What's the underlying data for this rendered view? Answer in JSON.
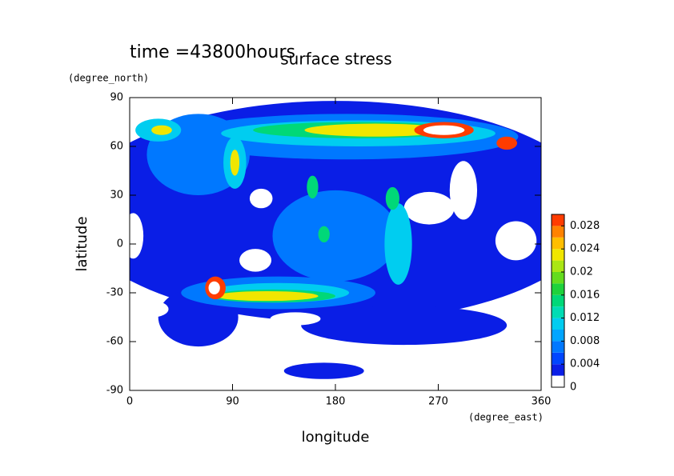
{
  "chart_data": {
    "type": "contour",
    "title": "surface stress",
    "subtitle": "time =43800hours",
    "x_label": "longitude",
    "y_label": "latitude",
    "x_unit": "(degree_east)",
    "y_unit": "(degree_north)",
    "xlim": [
      0,
      360
    ],
    "xticks": [
      0,
      90,
      180,
      270,
      360
    ],
    "ylim": [
      -90,
      90
    ],
    "yticks": [
      -90,
      -60,
      -30,
      0,
      30,
      60,
      90
    ],
    "levels": [
      0,
      0.002,
      0.004,
      0.006,
      0.008,
      0.01,
      0.012,
      0.014,
      0.016,
      0.018,
      0.02,
      0.022,
      0.024,
      0.026,
      0.028,
      0.03
    ],
    "colors": [
      "#ffffff",
      "#0a1ee6",
      "#0046ff",
      "#0078ff",
      "#00a5ff",
      "#00cdf0",
      "#00dcb4",
      "#00d878",
      "#1ed23c",
      "#64dc1e",
      "#aae614",
      "#f0e600",
      "#ffbe00",
      "#ff8200",
      "#ff3c00"
    ],
    "colorbar_ticks": [
      0,
      0.004,
      0.008,
      0.012,
      0.016,
      0.02,
      0.024,
      0.028
    ],
    "field": [
      {
        "level": 0.002,
        "lon": 180,
        "lat": 20,
        "rlon": 230,
        "rlat": 68
      },
      {
        "level": 0.002,
        "lon": 240,
        "lat": -50,
        "rlon": 90,
        "rlat": 12
      },
      {
        "level": 0.002,
        "lon": 60,
        "lat": -45,
        "rlon": 35,
        "rlat": 18
      },
      {
        "level": 0.002,
        "lon": 170,
        "lat": -78,
        "rlon": 35,
        "rlat": 5
      },
      {
        "level": 0,
        "lon": 262,
        "lat": 22,
        "rlon": 22,
        "rlat": 10
      },
      {
        "level": 0,
        "lon": 338,
        "lat": 2,
        "rlon": 18,
        "rlat": 12
      },
      {
        "level": 0,
        "lon": 110,
        "lat": -10,
        "rlon": 14,
        "rlat": 7
      },
      {
        "level": 0,
        "lon": 20,
        "lat": -40,
        "rlon": 14,
        "rlat": 5
      },
      {
        "level": 0,
        "lon": 145,
        "lat": -46,
        "rlon": 22,
        "rlat": 4
      },
      {
        "level": 0,
        "lon": 292,
        "lat": 33,
        "rlon": 12,
        "rlat": 18
      },
      {
        "level": 0,
        "lon": 350,
        "lat": -45,
        "rlon": 10,
        "rlat": 14
      },
      {
        "level": 0,
        "lon": 3,
        "lat": 5,
        "rlon": 9,
        "rlat": 14
      },
      {
        "level": 0,
        "lon": 115,
        "lat": 28,
        "rlon": 10,
        "rlat": 6
      },
      {
        "level": 0.006,
        "lon": 190,
        "lat": 66,
        "rlon": 150,
        "rlat": 14
      },
      {
        "level": 0.006,
        "lon": 180,
        "lat": 5,
        "rlon": 55,
        "rlat": 28
      },
      {
        "level": 0.006,
        "lon": 130,
        "lat": -30,
        "rlon": 85,
        "rlat": 10
      },
      {
        "level": 0.006,
        "lon": 60,
        "lat": 55,
        "rlon": 45,
        "rlat": 25
      },
      {
        "level": 0.01,
        "lon": 200,
        "lat": 68,
        "rlon": 120,
        "rlat": 8
      },
      {
        "level": 0.01,
        "lon": 130,
        "lat": -30,
        "rlon": 62,
        "rlat": 6
      },
      {
        "level": 0.01,
        "lon": 92,
        "lat": 50,
        "rlon": 10,
        "rlat": 16
      },
      {
        "level": 0.01,
        "lon": 25,
        "lat": 70,
        "rlon": 20,
        "rlat": 7
      },
      {
        "level": 0.01,
        "lon": 235,
        "lat": 0,
        "rlon": 12,
        "rlat": 25
      },
      {
        "level": 0.014,
        "lon": 200,
        "lat": 70,
        "rlon": 92,
        "rlat": 5
      },
      {
        "level": 0.014,
        "lon": 125,
        "lat": -32,
        "rlon": 55,
        "rlat": 4
      },
      {
        "level": 0.014,
        "lon": 230,
        "lat": 28,
        "rlon": 6,
        "rlat": 7
      },
      {
        "level": 0.014,
        "lon": 170,
        "lat": 6,
        "rlon": 5,
        "rlat": 5
      },
      {
        "level": 0.014,
        "lon": 160,
        "lat": 35,
        "rlon": 5,
        "rlat": 7
      },
      {
        "level": 0.022,
        "lon": 215,
        "lat": 70,
        "rlon": 62,
        "rlat": 4
      },
      {
        "level": 0.022,
        "lon": 120,
        "lat": -32,
        "rlon": 45,
        "rlat": 3
      },
      {
        "level": 0.022,
        "lon": 92,
        "lat": 50,
        "rlon": 4,
        "rlat": 8
      },
      {
        "level": 0.022,
        "lon": 28,
        "lat": 70,
        "rlon": 9,
        "rlat": 3
      },
      {
        "level": 0.028,
        "lon": 275,
        "lat": 70,
        "rlon": 26,
        "rlat": 5
      },
      {
        "level": 0.028,
        "lon": 330,
        "lat": 62,
        "rlon": 9,
        "rlat": 4
      },
      {
        "level": 0.028,
        "lon": 75,
        "lat": -27,
        "rlon": 9,
        "rlat": 7
      },
      {
        "level": 0,
        "lon": 275,
        "lat": 70,
        "rlon": 18,
        "rlat": 3
      },
      {
        "level": 0,
        "lon": 74,
        "lat": -27,
        "rlon": 5,
        "rlat": 4
      }
    ]
  }
}
